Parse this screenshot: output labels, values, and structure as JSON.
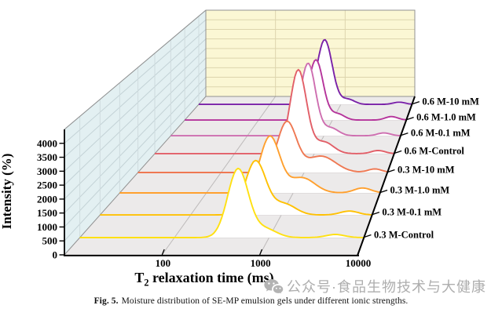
{
  "figure": {
    "caption_prefix": "Fig. 5.",
    "caption_text": "Moisture distribution of SE-MP emulsion gels under different ionic strengths.",
    "watermark_text": "公众号·食品生物技术与大健康"
  },
  "chart_data": {
    "type": "line",
    "subtype": "3d-waterfall",
    "title": "",
    "x_axis": {
      "title_main": "T",
      "title_sub": "2",
      "title_rest": " relaxation time (ms)",
      "scale": "log10",
      "range_ms": [
        10,
        10000
      ],
      "ticks": [
        100,
        1000,
        10000
      ]
    },
    "y_axis": {
      "title": "Intensity (%)",
      "range": [
        0,
        4500
      ],
      "ticks": [
        0,
        500,
        1000,
        1500,
        2000,
        2500,
        3000,
        3500,
        4000
      ]
    },
    "series_axis": {
      "order": "back-to-front",
      "label_side": "right"
    },
    "wall_colors": {
      "left_wall": "#E3F0F2",
      "back_wall": "#FBF7D4",
      "floor": "#ECEAEA"
    },
    "grid": {
      "left_wall_line": "#c3d2d6",
      "left_wall_vertical": "#cfdbde",
      "back_wall_line": "#ddd5ad",
      "floor_decade_line": "#bdbaba",
      "floor_row_line": "#d2cecf",
      "edge_line": "#909090",
      "axis_color": "#000000"
    },
    "series": [
      {
        "label": "0.6 M-10 mM",
        "color": "#7A22A8",
        "peak_t2_ms": 590,
        "peak_intensity": 3300,
        "components_log10": [
          [
            2.772,
            0.15,
            3300
          ],
          [
            3.1,
            0.13,
            260
          ],
          [
            3.82,
            0.12,
            110
          ]
        ]
      },
      {
        "label": "0.6 M-1.0 mM",
        "color": "#B5349B",
        "peak_t2_ms": 600,
        "peak_intensity": 2950,
        "components_log10": [
          [
            2.776,
            0.14,
            2950
          ],
          [
            3.07,
            0.13,
            300
          ],
          [
            3.8,
            0.12,
            170
          ]
        ]
      },
      {
        "label": "0.6 M-0.1 mM",
        "color": "#CE6EB0",
        "peak_t2_ms": 620,
        "peak_intensity": 3400,
        "components_log10": [
          [
            2.792,
            0.14,
            3400
          ],
          [
            3.09,
            0.14,
            360
          ],
          [
            3.78,
            0.12,
            130
          ]
        ]
      },
      {
        "label": "0.6 M-Control",
        "color": "#E25F68",
        "peak_t2_ms": 630,
        "peak_intensity": 3750,
        "components_log10": [
          [
            2.799,
            0.145,
            3750
          ],
          [
            3.12,
            0.17,
            520
          ],
          [
            3.8,
            0.12,
            140
          ]
        ]
      },
      {
        "label": "0.3 M-10 mM",
        "color": "#EF7852",
        "peak_t2_ms": 620,
        "peak_intensity": 2150,
        "components_log10": [
          [
            2.792,
            0.16,
            2150
          ],
          [
            3.2,
            0.25,
            700
          ],
          [
            3.85,
            0.12,
            150
          ]
        ]
      },
      {
        "label": "0.3 M-1.0 mM",
        "color": "#FFA02E",
        "peak_t2_ms": 540,
        "peak_intensity": 2300,
        "components_log10": [
          [
            2.732,
            0.16,
            2300
          ],
          [
            3.1,
            0.21,
            620
          ],
          [
            3.8,
            0.14,
            200
          ]
        ]
      },
      {
        "label": "0.3 M-0.1 mM",
        "color": "#FFC103",
        "peak_t2_ms": 520,
        "peak_intensity": 2100,
        "components_log10": [
          [
            2.716,
            0.16,
            2100
          ],
          [
            3.03,
            0.18,
            430
          ],
          [
            3.75,
            0.14,
            150
          ]
        ]
      },
      {
        "label": "0.3 M-Control",
        "color": "#FFE011",
        "peak_t2_ms": 470,
        "peak_intensity": 2550,
        "components_log10": [
          [
            2.672,
            0.155,
            2550
          ],
          [
            2.96,
            0.17,
            320
          ],
          [
            3.7,
            0.14,
            115
          ]
        ]
      }
    ]
  }
}
